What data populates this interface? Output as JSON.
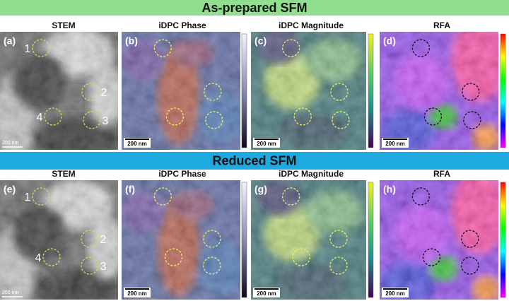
{
  "sections": [
    {
      "title": "As-prepared SFM",
      "headers": [
        "STEM",
        "iDPC Phase",
        "iDPC Magnitude",
        "RFA"
      ],
      "panels": [
        {
          "label": "(a)",
          "scale_bar": "200 nm"
        },
        {
          "label": "(b)",
          "scale_bar": "200 nm"
        },
        {
          "label": "(c)",
          "scale_bar": "200 nm"
        },
        {
          "label": "(d)",
          "scale_bar": "200 nm"
        }
      ],
      "markers": [
        "1",
        "2",
        "3",
        "4"
      ]
    },
    {
      "title": "Reduced SFM",
      "headers": [
        "STEM",
        "iDPC Phase",
        "iDPC Magnitude",
        "RFA"
      ],
      "panels": [
        {
          "label": "(e)",
          "scale_bar": "200 nm"
        },
        {
          "label": "(f)",
          "scale_bar": "200 nm"
        },
        {
          "label": "(g)",
          "scale_bar": "200 nm"
        },
        {
          "label": "(h)",
          "scale_bar": "200 nm"
        }
      ],
      "markers": [
        "1",
        "2",
        "3",
        "4"
      ]
    }
  ]
}
